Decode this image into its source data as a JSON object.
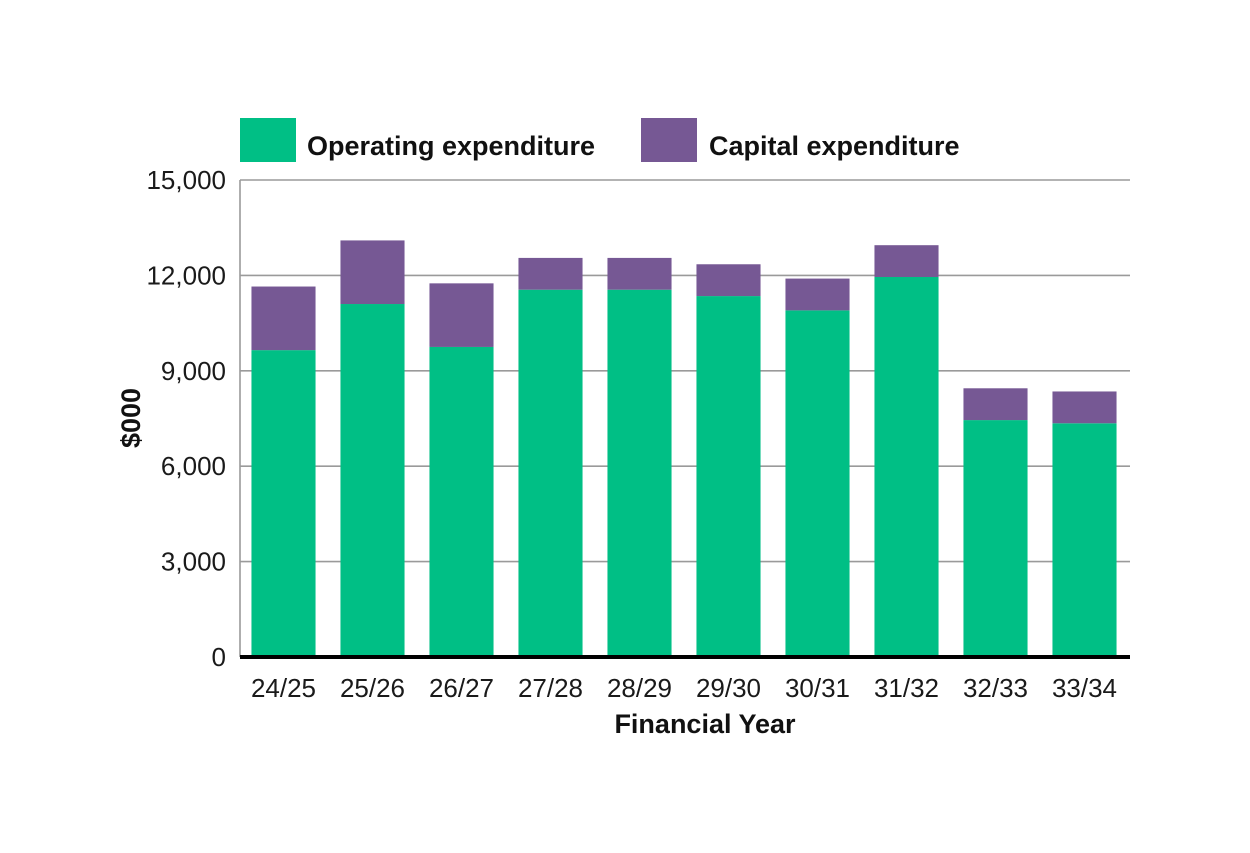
{
  "chart_data": {
    "type": "bar",
    "stacked": true,
    "title": "",
    "xlabel": "Financial Year",
    "ylabel": "$000",
    "ylim": [
      0,
      15000
    ],
    "yticks": [
      0,
      3000,
      6000,
      9000,
      12000,
      15000
    ],
    "ytick_labels": [
      "0",
      "3,000",
      "6,000",
      "9,000",
      "12,000",
      "15,000"
    ],
    "grid": true,
    "legend_position": "top-left",
    "categories": [
      "24/25",
      "25/26",
      "26/27",
      "27/28",
      "28/29",
      "29/30",
      "30/31",
      "31/32",
      "32/33",
      "33/34"
    ],
    "series": [
      {
        "name": "Operating expenditure",
        "color": "#00bf85",
        "values": [
          9650,
          11100,
          9750,
          11550,
          11550,
          11350,
          10900,
          11950,
          7450,
          7350
        ]
      },
      {
        "name": "Capital expenditure",
        "color": "#765894",
        "values": [
          2000,
          2000,
          2000,
          1000,
          1000,
          1000,
          1000,
          1000,
          1000,
          1000
        ]
      }
    ]
  }
}
